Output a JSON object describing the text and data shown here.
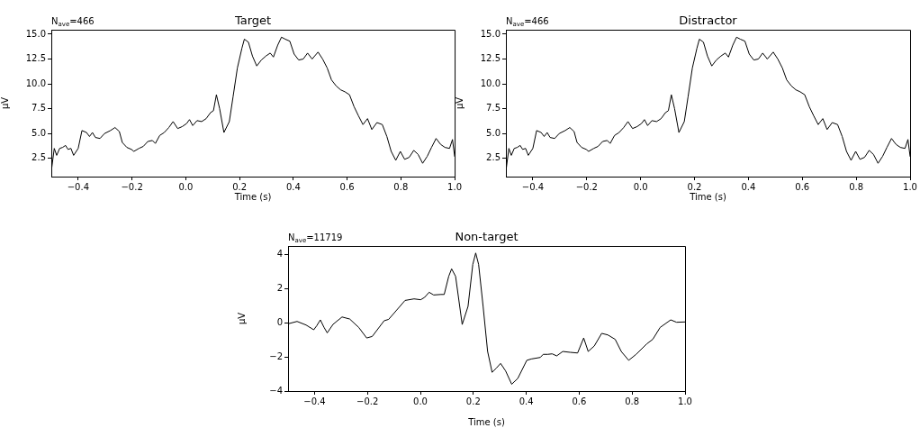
{
  "chart_data": [
    {
      "type": "line",
      "title": "Target",
      "xlabel": "Time (s)",
      "ylabel": "µV",
      "annotations": [
        "N$_{ave}$=466"
      ],
      "grid": false,
      "legend": false,
      "x": [
        -0.5,
        -0.489,
        -0.48,
        -0.469,
        -0.458,
        -0.447,
        -0.438,
        -0.427,
        -0.417,
        -0.4,
        -0.386,
        -0.369,
        -0.358,
        -0.347,
        -0.336,
        -0.319,
        -0.302,
        -0.28,
        -0.263,
        -0.247,
        -0.236,
        -0.219,
        -0.202,
        -0.193,
        -0.174,
        -0.158,
        -0.141,
        -0.124,
        -0.113,
        -0.097,
        -0.08,
        -0.063,
        -0.047,
        -0.03,
        -0.013,
        0.003,
        0.014,
        0.026,
        0.042,
        0.059,
        0.076,
        0.092,
        0.103,
        0.114,
        0.126,
        0.142,
        0.162,
        0.176,
        0.192,
        0.209,
        0.218,
        0.233,
        0.248,
        0.264,
        0.281,
        0.298,
        0.314,
        0.326,
        0.342,
        0.356,
        0.37,
        0.387,
        0.403,
        0.42,
        0.437,
        0.453,
        0.47,
        0.492,
        0.509,
        0.526,
        0.542,
        0.559,
        0.576,
        0.592,
        0.609,
        0.626,
        0.642,
        0.659,
        0.676,
        0.692,
        0.711,
        0.731,
        0.748,
        0.764,
        0.781,
        0.798,
        0.814,
        0.831,
        0.848,
        0.864,
        0.881,
        0.898,
        0.914,
        0.931,
        0.948,
        0.964,
        0.981,
        0.992,
        1.0
      ],
      "series": [
        {
          "color": "#000000",
          "values": [
            1.2,
            3.5,
            2.8,
            3.5,
            3.6,
            3.8,
            3.4,
            3.5,
            2.8,
            3.5,
            5.3,
            5.1,
            4.7,
            5.1,
            4.6,
            4.5,
            5.0,
            5.3,
            5.6,
            5.2,
            4.1,
            3.6,
            3.4,
            3.2,
            3.5,
            3.7,
            4.2,
            4.3,
            4.0,
            4.8,
            5.1,
            5.6,
            6.2,
            5.5,
            5.7,
            6.0,
            6.4,
            5.8,
            6.3,
            6.2,
            6.5,
            7.1,
            7.3,
            8.9,
            7.5,
            5.1,
            6.2,
            8.7,
            11.6,
            13.6,
            14.5,
            14.2,
            12.8,
            11.8,
            12.4,
            12.8,
            13.1,
            12.7,
            13.9,
            14.7,
            14.5,
            14.3,
            13.0,
            12.4,
            12.5,
            13.1,
            12.5,
            13.2,
            12.5,
            11.6,
            10.4,
            9.8,
            9.4,
            9.2,
            8.9,
            7.7,
            6.8,
            5.9,
            6.5,
            5.4,
            6.1,
            5.9,
            4.7,
            3.2,
            2.3,
            3.2,
            2.4,
            2.6,
            3.3,
            2.9,
            2.0,
            2.7,
            3.6,
            4.5,
            3.9,
            3.6,
            3.5,
            4.4,
            2.7
          ]
        }
      ],
      "xlim": [
        -0.5,
        1.0
      ],
      "ylim": [
        0.66,
        15.45
      ],
      "xticks": [
        {
          "value": -0.4,
          "label": "−0.4"
        },
        {
          "value": -0.2,
          "label": "−0.2"
        },
        {
          "value": 0,
          "label": "0.0"
        },
        {
          "value": 0.2,
          "label": "0.2"
        },
        {
          "value": 0.4,
          "label": "0.4"
        },
        {
          "value": 0.6,
          "label": "0.6"
        },
        {
          "value": 0.8,
          "label": "0.8"
        },
        {
          "value": 1.0,
          "label": "1.0"
        }
      ],
      "yticks": [
        {
          "value": 2.5,
          "label": "2.5"
        },
        {
          "value": 5,
          "label": "5.0"
        },
        {
          "value": 7.5,
          "label": "7.5"
        },
        {
          "value": 10,
          "label": "10.0"
        },
        {
          "value": 12.5,
          "label": "12.5"
        },
        {
          "value": 15,
          "label": "15.0"
        }
      ]
    },
    {
      "type": "line",
      "title": "Distractor",
      "xlabel": "Time (s)",
      "ylabel": "µV",
      "annotations": [
        "N$_{ave}$=466"
      ],
      "grid": false,
      "legend": false,
      "x": [
        -0.5,
        -0.489,
        -0.48,
        -0.469,
        -0.458,
        -0.447,
        -0.438,
        -0.427,
        -0.417,
        -0.4,
        -0.386,
        -0.369,
        -0.358,
        -0.347,
        -0.336,
        -0.319,
        -0.302,
        -0.28,
        -0.263,
        -0.247,
        -0.236,
        -0.219,
        -0.202,
        -0.193,
        -0.174,
        -0.158,
        -0.141,
        -0.124,
        -0.113,
        -0.097,
        -0.08,
        -0.063,
        -0.047,
        -0.03,
        -0.013,
        0.003,
        0.014,
        0.026,
        0.042,
        0.059,
        0.076,
        0.092,
        0.103,
        0.114,
        0.126,
        0.142,
        0.162,
        0.176,
        0.192,
        0.209,
        0.218,
        0.233,
        0.248,
        0.264,
        0.281,
        0.298,
        0.314,
        0.326,
        0.342,
        0.356,
        0.37,
        0.387,
        0.403,
        0.42,
        0.437,
        0.453,
        0.47,
        0.492,
        0.509,
        0.526,
        0.542,
        0.559,
        0.576,
        0.592,
        0.609,
        0.626,
        0.642,
        0.659,
        0.676,
        0.692,
        0.711,
        0.731,
        0.748,
        0.764,
        0.781,
        0.798,
        0.814,
        0.831,
        0.848,
        0.864,
        0.881,
        0.898,
        0.914,
        0.931,
        0.948,
        0.964,
        0.981,
        0.992,
        1.0
      ],
      "series": [
        {
          "color": "#000000",
          "values": [
            1.2,
            3.5,
            2.8,
            3.5,
            3.6,
            3.8,
            3.4,
            3.5,
            2.8,
            3.5,
            5.3,
            5.1,
            4.7,
            5.1,
            4.6,
            4.5,
            5.0,
            5.3,
            5.6,
            5.2,
            4.1,
            3.6,
            3.4,
            3.2,
            3.5,
            3.7,
            4.2,
            4.3,
            4.0,
            4.8,
            5.1,
            5.6,
            6.2,
            5.5,
            5.7,
            6.0,
            6.4,
            5.8,
            6.3,
            6.2,
            6.5,
            7.1,
            7.3,
            8.9,
            7.5,
            5.1,
            6.2,
            8.7,
            11.6,
            13.6,
            14.5,
            14.2,
            12.8,
            11.8,
            12.4,
            12.8,
            13.1,
            12.7,
            13.9,
            14.7,
            14.5,
            14.3,
            13.0,
            12.4,
            12.5,
            13.1,
            12.5,
            13.2,
            12.5,
            11.6,
            10.4,
            9.8,
            9.4,
            9.2,
            8.9,
            7.7,
            6.8,
            5.9,
            6.5,
            5.4,
            6.1,
            5.9,
            4.7,
            3.2,
            2.3,
            3.2,
            2.4,
            2.6,
            3.3,
            2.9,
            2.0,
            2.7,
            3.6,
            4.5,
            3.9,
            3.6,
            3.5,
            4.4,
            2.7
          ]
        }
      ],
      "xlim": [
        -0.5,
        1.0
      ],
      "ylim": [
        0.66,
        15.45
      ],
      "xticks": [
        {
          "value": -0.4,
          "label": "−0.4"
        },
        {
          "value": -0.2,
          "label": "−0.2"
        },
        {
          "value": 0,
          "label": "0.0"
        },
        {
          "value": 0.2,
          "label": "0.2"
        },
        {
          "value": 0.4,
          "label": "0.4"
        },
        {
          "value": 0.6,
          "label": "0.6"
        },
        {
          "value": 0.8,
          "label": "0.8"
        },
        {
          "value": 1.0,
          "label": "1.0"
        }
      ],
      "yticks": [
        {
          "value": 2.5,
          "label": "2.5"
        },
        {
          "value": 5,
          "label": "5.0"
        },
        {
          "value": 7.5,
          "label": "7.5"
        },
        {
          "value": 10,
          "label": "10.0"
        },
        {
          "value": 12.5,
          "label": "12.5"
        },
        {
          "value": 15,
          "label": "15.0"
        }
      ]
    },
    {
      "type": "line",
      "title": "Non-target",
      "xlabel": "Time (s)",
      "ylabel": "µV",
      "annotations": [
        "N$_{ave}$=11719"
      ],
      "grid": false,
      "legend": false,
      "x": [
        -0.5,
        -0.466,
        -0.432,
        -0.403,
        -0.392,
        -0.378,
        -0.364,
        -0.352,
        -0.33,
        -0.296,
        -0.267,
        -0.233,
        -0.203,
        -0.182,
        -0.137,
        -0.12,
        -0.092,
        -0.058,
        -0.024,
        0.001,
        0.016,
        0.033,
        0.05,
        0.078,
        0.09,
        0.107,
        0.118,
        0.133,
        0.158,
        0.18,
        0.198,
        0.209,
        0.22,
        0.237,
        0.254,
        0.271,
        0.288,
        0.303,
        0.322,
        0.345,
        0.368,
        0.402,
        0.419,
        0.453,
        0.464,
        0.481,
        0.498,
        0.515,
        0.538,
        0.566,
        0.594,
        0.617,
        0.634,
        0.657,
        0.685,
        0.708,
        0.736,
        0.759,
        0.787,
        0.815,
        0.855,
        0.878,
        0.906,
        0.946,
        0.968,
        1.0
      ],
      "series": [
        {
          "color": "#000000",
          "values": [
            -0.06,
            0.08,
            -0.13,
            -0.41,
            -0.18,
            0.17,
            -0.27,
            -0.59,
            -0.09,
            0.34,
            0.22,
            -0.27,
            -0.89,
            -0.8,
            0.12,
            0.2,
            0.7,
            1.31,
            1.4,
            1.35,
            1.49,
            1.79,
            1.63,
            1.66,
            1.66,
            2.72,
            3.16,
            2.72,
            -0.1,
            0.96,
            3.42,
            4.09,
            3.42,
            0.96,
            -1.68,
            -2.9,
            -2.64,
            -2.38,
            -2.82,
            -3.6,
            -3.26,
            -2.2,
            -2.12,
            -2.03,
            -1.85,
            -1.85,
            -1.82,
            -1.94,
            -1.68,
            -1.73,
            -1.77,
            -0.89,
            -1.68,
            -1.36,
            -0.62,
            -0.71,
            -0.97,
            -1.68,
            -2.2,
            -1.85,
            -1.24,
            -0.97,
            -0.27,
            0.17,
            0.03,
            0.05
          ]
        }
      ],
      "xlim": [
        -0.5,
        1.0
      ],
      "ylim": [
        -4,
        4.5
      ],
      "xticks": [
        {
          "value": -0.4,
          "label": "−0.4"
        },
        {
          "value": -0.2,
          "label": "−0.2"
        },
        {
          "value": 0,
          "label": "0.0"
        },
        {
          "value": 0.2,
          "label": "0.2"
        },
        {
          "value": 0.4,
          "label": "0.4"
        },
        {
          "value": 0.6,
          "label": "0.6"
        },
        {
          "value": 0.8,
          "label": "0.8"
        },
        {
          "value": 1.0,
          "label": "1.0"
        }
      ],
      "yticks": [
        {
          "value": -4,
          "label": "−4"
        },
        {
          "value": -2,
          "label": "−2"
        },
        {
          "value": 0,
          "label": "0"
        },
        {
          "value": 2,
          "label": "2"
        },
        {
          "value": 4,
          "label": "4"
        }
      ]
    }
  ]
}
